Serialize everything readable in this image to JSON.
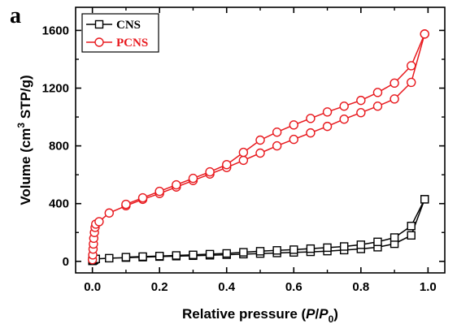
{
  "panel_label": "a",
  "chart_data": {
    "type": "line",
    "xlabel_parts": [
      "Relative pressure (",
      "P",
      "/",
      "P",
      "0",
      ")"
    ],
    "ylabel_parts": [
      "Volume (cm",
      "3",
      " STP/g)"
    ],
    "xlim": [
      -0.05,
      1.05
    ],
    "ylim": [
      -80,
      1760
    ],
    "x_ticks": [
      0.0,
      0.2,
      0.4,
      0.6,
      0.8,
      1.0
    ],
    "x_tick_labels": [
      "0.0",
      "0.2",
      "0.4",
      "0.6",
      "0.8",
      "1.0"
    ],
    "y_ticks": [
      0,
      400,
      800,
      1200,
      1600
    ],
    "y_tick_labels": [
      "0",
      "400",
      "800",
      "1200",
      "1600"
    ],
    "legend_position": "top-left",
    "series": [
      {
        "name": "CNS",
        "color": "#000000",
        "marker": "square",
        "adsorption": {
          "x": [
            0.0,
            0.002,
            0.004,
            0.006,
            0.01,
            0.05,
            0.1,
            0.15,
            0.2,
            0.25,
            0.3,
            0.35,
            0.4,
            0.45,
            0.5,
            0.55,
            0.6,
            0.65,
            0.7,
            0.75,
            0.8,
            0.85,
            0.9,
            0.95,
            0.99
          ],
          "y": [
            3,
            6,
            9,
            12,
            17,
            22,
            26,
            29,
            33,
            36,
            39,
            42,
            46,
            50,
            54,
            58,
            62,
            66,
            71,
            78,
            86,
            98,
            122,
            180,
            430
          ]
        },
        "desorption": {
          "x": [
            0.99,
            0.95,
            0.9,
            0.85,
            0.8,
            0.75,
            0.7,
            0.65,
            0.6,
            0.55,
            0.5,
            0.45,
            0.4,
            0.35,
            0.3,
            0.25,
            0.2,
            0.15,
            0.1
          ],
          "y": [
            430,
            245,
            165,
            135,
            115,
            103,
            95,
            88,
            81,
            76,
            70,
            63,
            55,
            50,
            45,
            41,
            37,
            33,
            29
          ]
        }
      },
      {
        "name": "PCNS",
        "color": "#e8191e",
        "marker": "circle",
        "adsorption": {
          "x": [
            0.0,
            0.001,
            0.002,
            0.003,
            0.004,
            0.006,
            0.008,
            0.01,
            0.02,
            0.05,
            0.1,
            0.15,
            0.2,
            0.25,
            0.3,
            0.35,
            0.4,
            0.45,
            0.5,
            0.55,
            0.6,
            0.65,
            0.7,
            0.75,
            0.8,
            0.85,
            0.9,
            0.95,
            0.99
          ],
          "y": [
            12,
            45,
            85,
            120,
            160,
            200,
            235,
            258,
            275,
            335,
            385,
            430,
            470,
            515,
            560,
            605,
            650,
            700,
            750,
            800,
            845,
            890,
            935,
            985,
            1030,
            1075,
            1125,
            1240,
            1575
          ]
        },
        "desorption": {
          "x": [
            0.99,
            0.95,
            0.9,
            0.85,
            0.8,
            0.75,
            0.7,
            0.65,
            0.6,
            0.55,
            0.5,
            0.45,
            0.4,
            0.35,
            0.3,
            0.25,
            0.2,
            0.15,
            0.1
          ],
          "y": [
            1575,
            1355,
            1235,
            1170,
            1115,
            1075,
            1035,
            990,
            945,
            895,
            840,
            755,
            670,
            620,
            575,
            530,
            485,
            440,
            395
          ]
        }
      }
    ]
  }
}
